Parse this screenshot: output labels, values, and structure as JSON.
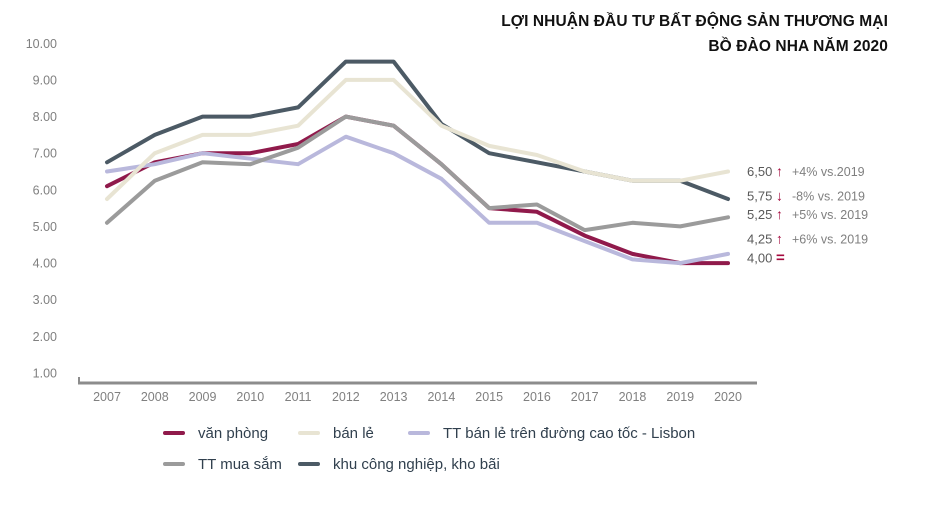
{
  "title": {
    "line1": "LỢI NHUẬN ĐẦU TƯ BẤT ĐỘNG SẢN THƯƠNG MẠI",
    "line2": "BỒ ĐÀO NHA NĂM 2020"
  },
  "chart_data": {
    "type": "line",
    "categories": [
      "2007",
      "2008",
      "2009",
      "2010",
      "2011",
      "2012",
      "2013",
      "2014",
      "2015",
      "2016",
      "2017",
      "2018",
      "2019",
      "2020"
    ],
    "series": [
      {
        "name": "văn phòng",
        "color": "#901a4b",
        "values": [
          6.1,
          6.75,
          7.0,
          7.0,
          7.25,
          8.0,
          7.75,
          6.7,
          5.5,
          5.4,
          4.75,
          4.25,
          4.0,
          4.0
        ]
      },
      {
        "name": "bán lẻ",
        "color": "#e8e4d3",
        "values": [
          5.75,
          7.0,
          7.5,
          7.5,
          7.75,
          9.0,
          9.0,
          7.75,
          7.2,
          6.95,
          6.5,
          6.25,
          6.25,
          6.5
        ]
      },
      {
        "name": "TT bán lẻ trên đường cao tốc - Lisbon",
        "color": "#b9b8dc",
        "values": [
          6.5,
          6.7,
          7.0,
          6.85,
          6.7,
          7.45,
          7.0,
          6.3,
          5.1,
          5.1,
          4.6,
          4.1,
          4.0,
          4.25
        ]
      },
      {
        "name": "TT mua sắm",
        "color": "#9b9b9b",
        "values": [
          5.1,
          6.25,
          6.75,
          6.7,
          7.15,
          8.0,
          7.75,
          6.7,
          5.5,
          5.6,
          4.9,
          5.1,
          5.0,
          5.25
        ]
      },
      {
        "name": "khu công nghiệp, kho bãi",
        "color": "#4c5a65",
        "values": [
          6.75,
          7.5,
          8.0,
          8.0,
          8.25,
          9.5,
          9.5,
          7.8,
          7.0,
          6.75,
          6.5,
          6.25,
          6.25,
          5.75
        ]
      }
    ],
    "ylim": [
      1,
      10
    ],
    "yticks": [
      "10.00",
      "9.00",
      "8.00",
      "7.00",
      "6.00",
      "5.00",
      "4.00",
      "3.00",
      "2.00",
      "1.00"
    ],
    "grid": false,
    "legend_position": "bottom",
    "annotations": [
      {
        "value": "6,50",
        "trend": "up",
        "change": "+4% vs.2019",
        "at": 6.5
      },
      {
        "value": "5,75",
        "trend": "down",
        "change": "-8% vs. 2019",
        "at": 5.75
      },
      {
        "value": "5,25",
        "trend": "up",
        "change": "+5% vs. 2019",
        "at": 5.25
      },
      {
        "value": "4,25",
        "trend": "up",
        "change": "+6% vs. 2019",
        "at": 4.25
      },
      {
        "value": "4,00",
        "trend": "equal",
        "change": "",
        "at": 4.0
      }
    ]
  },
  "colors": {
    "arrow": "#a5093e",
    "annotation_value": "#595959",
    "annotation_change": "#7f7f7f",
    "axis_text": "#808080",
    "axis_line": "#8c8c8c",
    "legend_text": "#31404e",
    "title_text": "#111111"
  }
}
